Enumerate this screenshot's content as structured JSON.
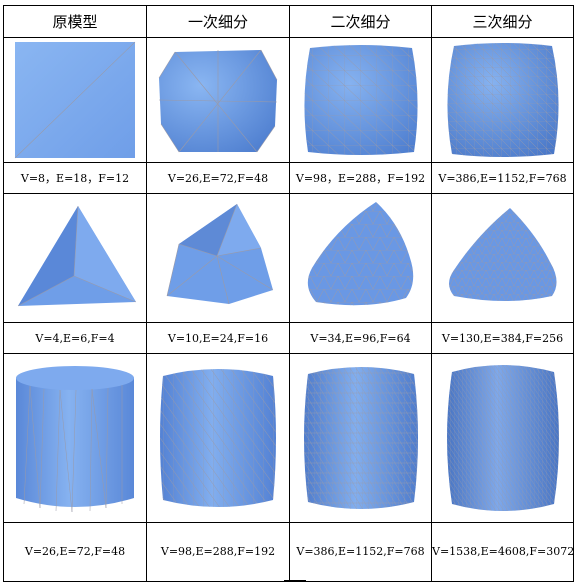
{
  "headers": [
    "原模型",
    "一次细分",
    "二次细分",
    "三次细分"
  ],
  "captions": {
    "cube": [
      "V=8，E=18，F=12",
      "V=26,E=72,F=48",
      "V=98，E=288，F=192",
      "V=386,E=1152,F=768"
    ],
    "tetra": [
      "V=4,E=6,F=4",
      "V=10,E=24,F=16",
      "V=34,E=96,F=64",
      "V=130,E=384,F=256"
    ],
    "cylinder": [
      "V=26,E=72,F=48",
      "V=98,E=288,F=192",
      "V=386,E=1152,F=768",
      "V=1538,E=4608,F=3072"
    ]
  },
  "colors": {
    "surface": "#6f9ee8",
    "surface_light": "#8ab6f2",
    "surface_dark": "#4f7fd0",
    "wire": "#9a9aa8"
  }
}
